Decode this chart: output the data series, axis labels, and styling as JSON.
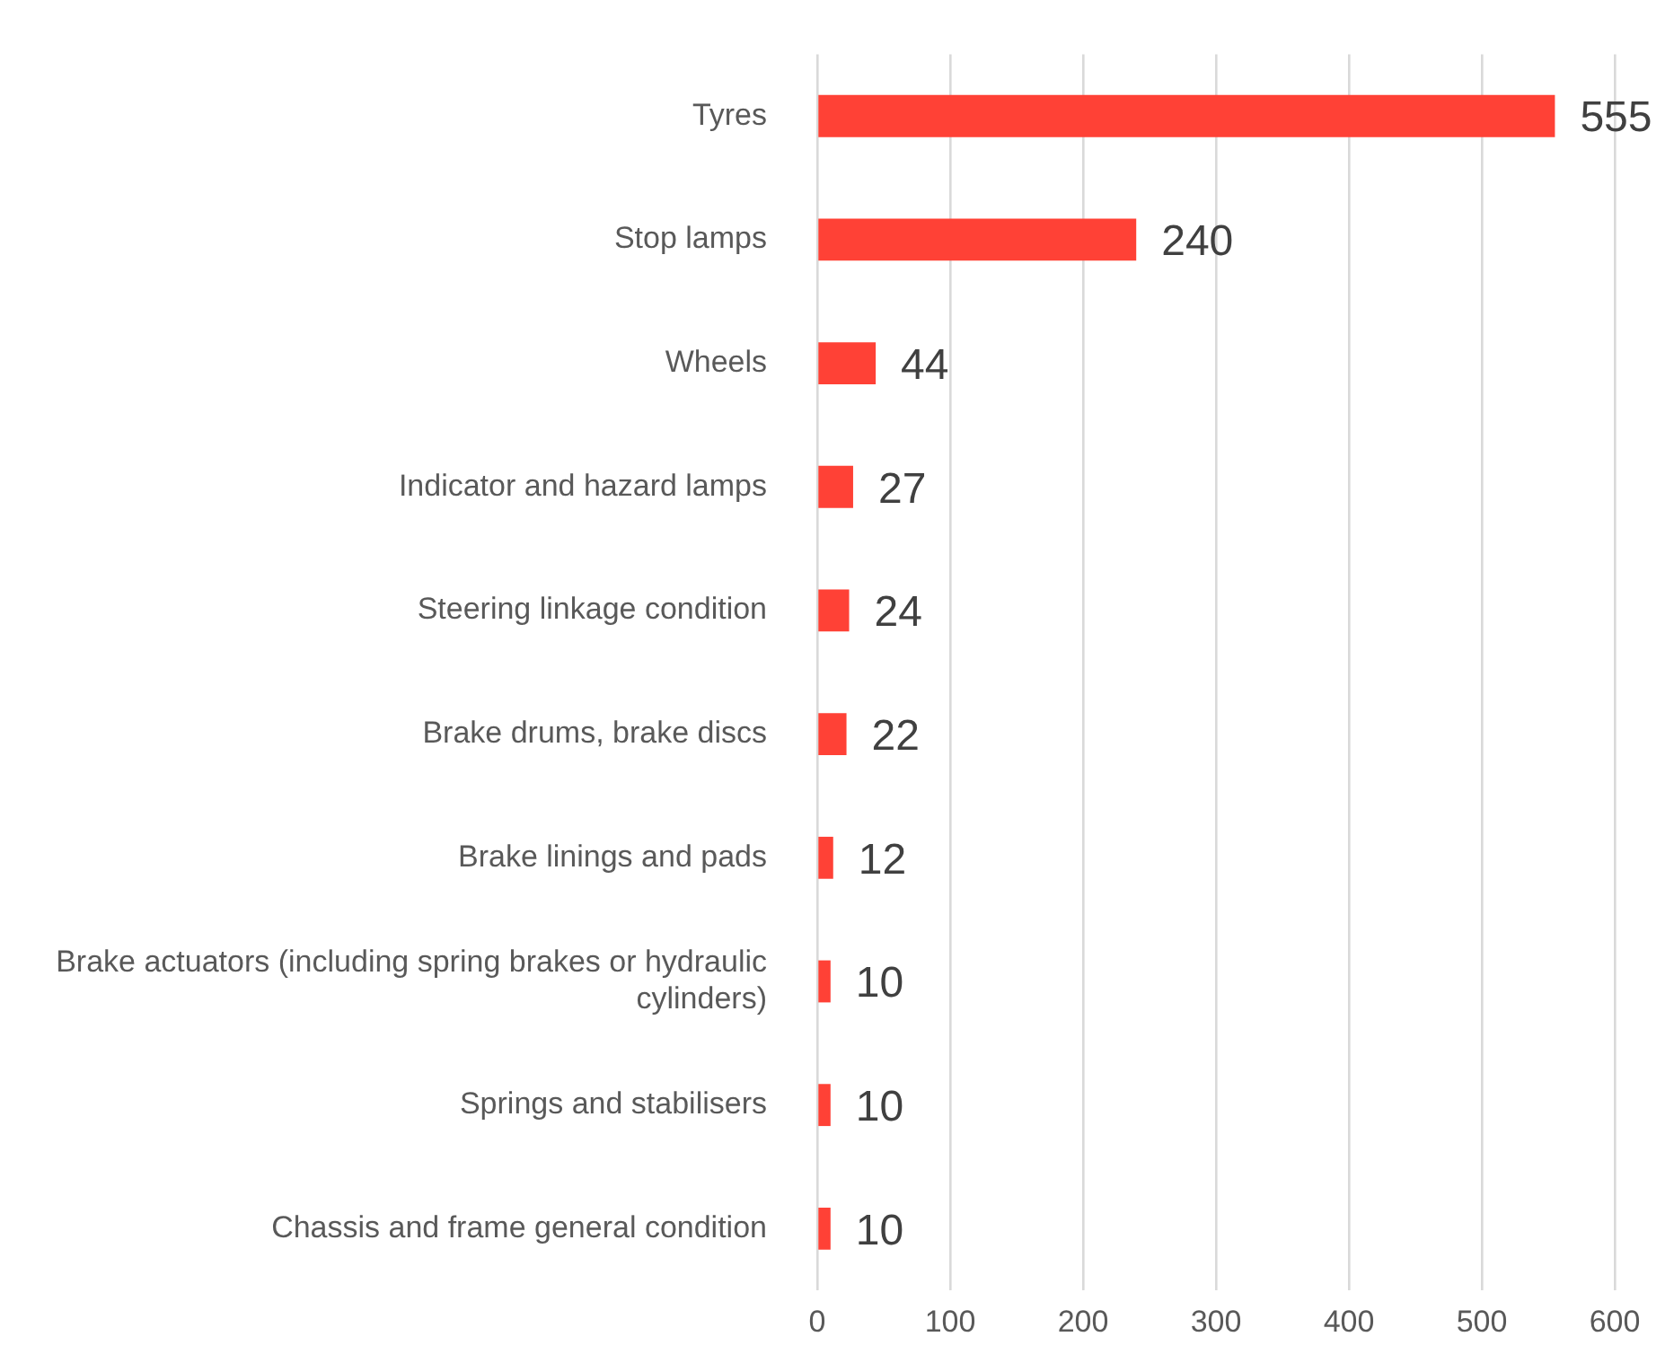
{
  "chart_data": {
    "type": "bar",
    "orientation": "horizontal",
    "categories": [
      "Tyres",
      "Stop lamps",
      "Wheels",
      "Indicator and hazard lamps",
      "Steering linkage condition",
      "Brake drums, brake discs",
      "Brake linings and pads",
      "Brake actuators (including spring brakes or hydraulic cylinders)",
      "Springs and stabilisers",
      "Chassis and frame general condition"
    ],
    "values": [
      555,
      240,
      44,
      27,
      24,
      22,
      12,
      10,
      10,
      10
    ],
    "color": "#ff4136",
    "xlim": [
      0,
      600
    ],
    "xticks": [
      0,
      100,
      200,
      300,
      400,
      500,
      600
    ],
    "grid": "x",
    "legend": false,
    "data_labels": true
  }
}
